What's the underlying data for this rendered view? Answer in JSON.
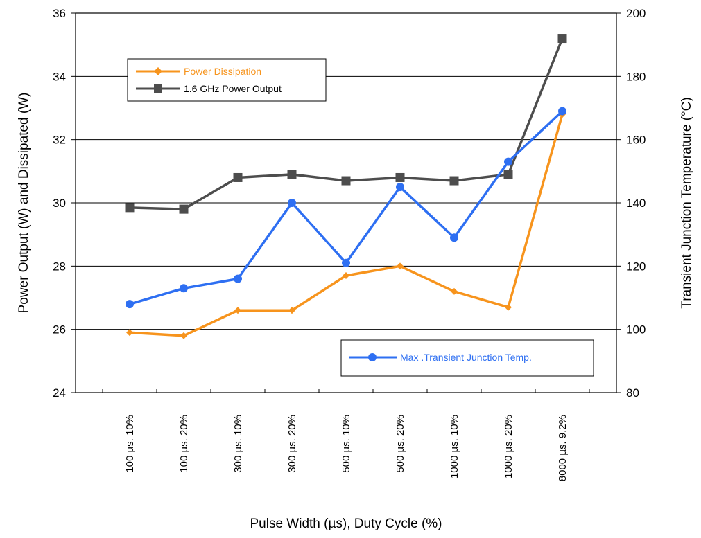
{
  "chart_data": {
    "type": "line",
    "categories": [
      "100 µs. 10%",
      "100 µs. 20%",
      "300 µs. 10%",
      "300 µs. 20%",
      "500 µs. 10%",
      "500 µs. 20%",
      "1000 µs. 10%",
      "1000 µs. 20%",
      "8000 µs. 9.2%"
    ],
    "xlabel": "Pulse Width (µs), Duty Cycle (%)",
    "ylabel_left": "Power Output (W) and Dissipated (W)",
    "ylabel_right": "Transient Junction Temperature (°C)",
    "ylim_left": [
      24,
      36
    ],
    "ylim_right": [
      80,
      200
    ],
    "yticks_left": [
      "24",
      "26",
      "28",
      "30",
      "32",
      "34",
      "36"
    ],
    "yticks_right": [
      "80",
      "100",
      "120",
      "140",
      "160",
      "180",
      "200"
    ],
    "grid": true,
    "series": [
      {
        "name": "Power Dissipation",
        "axis": "left",
        "color": "#f7941d",
        "marker": "diamond",
        "values": [
          25.9,
          25.8,
          26.6,
          26.6,
          27.7,
          28.0,
          27.2,
          26.7,
          32.8
        ]
      },
      {
        "name": "1.6 GHz Power Output",
        "axis": "left",
        "color": "#4d4d4d",
        "marker": "square",
        "values": [
          29.85,
          29.8,
          30.8,
          30.9,
          30.7,
          30.8,
          30.7,
          30.9,
          35.2
        ]
      },
      {
        "name": "Max .Transient Junction Temp.",
        "axis": "right",
        "color": "#2e6ff2",
        "marker": "circle",
        "values": [
          108,
          113,
          116,
          140,
          121,
          145,
          129,
          153,
          169
        ]
      }
    ],
    "legends": [
      {
        "position": "top-left",
        "entries": [
          "Power Dissipation",
          "1.6 GHz Power Output"
        ]
      },
      {
        "position": "bottom-right",
        "entries": [
          "Max .Transient Junction Temp."
        ]
      }
    ]
  }
}
